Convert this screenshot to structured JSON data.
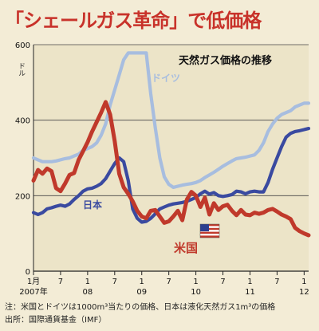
{
  "headline": "「シェールガス革命」で低価格",
  "chart_data": {
    "type": "line",
    "title": "天然ガス価格の推移",
    "ylabel": "ドル",
    "ylim": [
      0,
      600
    ],
    "yticks": [
      "0",
      "200",
      "400",
      "600"
    ],
    "grid": true,
    "colors": {
      "germany": "#a7bddf",
      "japan": "#3a4aa0",
      "usa": "#c0392b"
    },
    "x_tick_labels": [
      {
        "t": 0,
        "line1": "1月",
        "line2": "2007年"
      },
      {
        "t": 6,
        "line1": "7",
        "line2": ""
      },
      {
        "t": 12,
        "line1": "1",
        "line2": "08"
      },
      {
        "t": 18,
        "line1": "7",
        "line2": ""
      },
      {
        "t": 24,
        "line1": "1",
        "line2": "09"
      },
      {
        "t": 30,
        "line1": "7",
        "line2": ""
      },
      {
        "t": 36,
        "line1": "1",
        "line2": "10"
      },
      {
        "t": 42,
        "line1": "7",
        "line2": ""
      },
      {
        "t": 48,
        "line1": "1",
        "line2": "11"
      },
      {
        "t": 54,
        "line1": "7",
        "line2": ""
      },
      {
        "t": 60,
        "line1": "1",
        "line2": "12"
      }
    ],
    "series": [
      {
        "key": "germany",
        "name": "ドイツ",
        "x": [
          0,
          1,
          2,
          3,
          4,
          5,
          6,
          7,
          8,
          9,
          10,
          11,
          12,
          13,
          14,
          15,
          16,
          17,
          18,
          19,
          20,
          21,
          22,
          23,
          24,
          25,
          26,
          27,
          28,
          29,
          30,
          31,
          32,
          33,
          34,
          35,
          36,
          37,
          38,
          39,
          40,
          41,
          42,
          43,
          44,
          45,
          46,
          47,
          48,
          49,
          50,
          51,
          52,
          53,
          54,
          55,
          56,
          57,
          58,
          59,
          60,
          61
        ],
        "y": [
          300,
          295,
          290,
          290,
          290,
          292,
          295,
          298,
          300,
          305,
          310,
          320,
          325,
          330,
          340,
          360,
          390,
          440,
          480,
          520,
          560,
          578,
          578,
          578,
          578,
          578,
          470,
          380,
          300,
          250,
          230,
          222,
          225,
          228,
          230,
          232,
          235,
          240,
          248,
          255,
          262,
          270,
          278,
          285,
          292,
          298,
          300,
          302,
          305,
          308,
          320,
          340,
          370,
          390,
          405,
          415,
          420,
          425,
          435,
          440,
          445,
          445
        ]
      },
      {
        "key": "japan",
        "name": "日本",
        "x": [
          0,
          1,
          2,
          3,
          4,
          5,
          6,
          7,
          8,
          9,
          10,
          11,
          12,
          13,
          14,
          15,
          16,
          17,
          18,
          19,
          20,
          21,
          22,
          23,
          24,
          25,
          26,
          27,
          28,
          29,
          30,
          31,
          32,
          33,
          34,
          35,
          36,
          37,
          38,
          39,
          40,
          41,
          42,
          43,
          44,
          45,
          46,
          47,
          48,
          49,
          50,
          51,
          52,
          53,
          54,
          55,
          56,
          57,
          58,
          59,
          60,
          61
        ],
        "y": [
          155,
          150,
          155,
          165,
          168,
          172,
          175,
          172,
          178,
          190,
          200,
          212,
          218,
          220,
          225,
          232,
          245,
          265,
          285,
          300,
          290,
          240,
          165,
          140,
          130,
          132,
          140,
          152,
          165,
          170,
          175,
          178,
          180,
          182,
          185,
          190,
          195,
          205,
          212,
          204,
          208,
          200,
          198,
          200,
          203,
          212,
          210,
          205,
          210,
          212,
          210,
          210,
          235,
          270,
          300,
          330,
          355,
          365,
          370,
          372,
          375,
          378
        ]
      },
      {
        "key": "usa",
        "name": "米国",
        "x": [
          0,
          1,
          2,
          3,
          4,
          5,
          6,
          7,
          8,
          9,
          10,
          11,
          12,
          13,
          14,
          15,
          16,
          17,
          18,
          19,
          20,
          21,
          22,
          23,
          24,
          25,
          26,
          27,
          28,
          29,
          30,
          31,
          32,
          33,
          34,
          35,
          36,
          37,
          38,
          39,
          40,
          41,
          42,
          43,
          44,
          45,
          46,
          47,
          48,
          49,
          50,
          51,
          52,
          53,
          54,
          55,
          56,
          57,
          58,
          59,
          60,
          61
        ],
        "y": [
          240,
          268,
          258,
          272,
          265,
          220,
          212,
          232,
          255,
          260,
          295,
          318,
          342,
          370,
          395,
          420,
          448,
          415,
          345,
          258,
          222,
          205,
          185,
          160,
          145,
          140,
          160,
          162,
          145,
          128,
          132,
          145,
          160,
          135,
          190,
          210,
          200,
          170,
          195,
          150,
          180,
          162,
          172,
          176,
          160,
          148,
          162,
          150,
          148,
          155,
          152,
          155,
          162,
          165,
          158,
          150,
          145,
          138,
          115,
          106,
          100,
          95
        ]
      }
    ],
    "labels": {
      "germany": "ドイツ",
      "japan": "日本",
      "usa": "米国"
    }
  },
  "notes": {
    "line1": "注：米国とドイツは1000m³当たりの価格、日本は液化天然ガス1m³の価格",
    "line2": "出所：国際通貨基金（IMF）"
  }
}
